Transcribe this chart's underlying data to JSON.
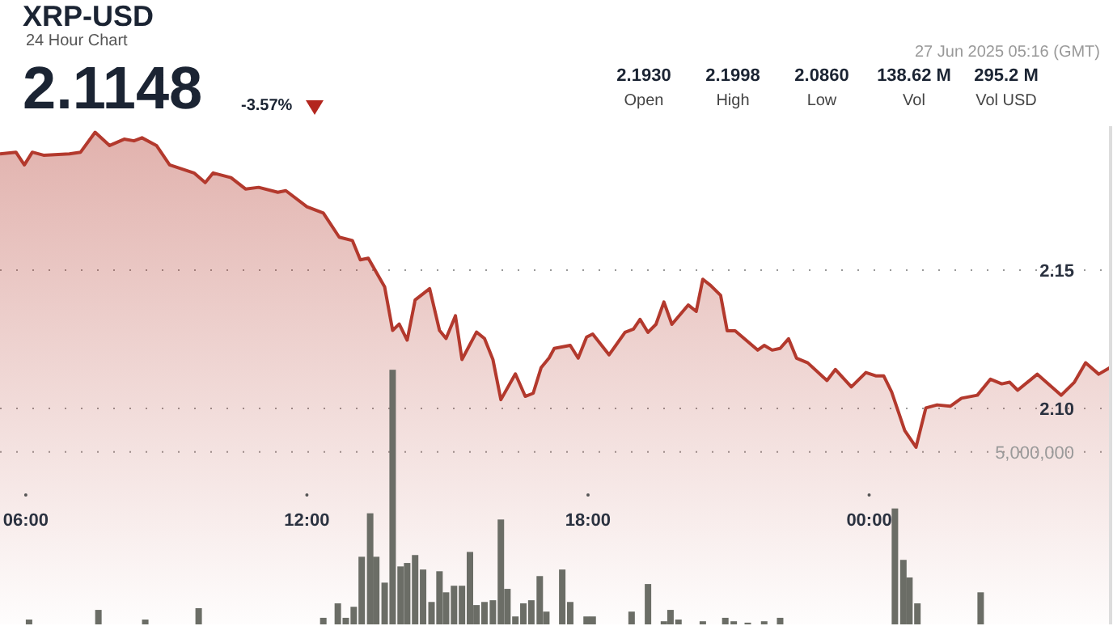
{
  "chart_data": {
    "type": "area",
    "title": "XRP-USD",
    "subtitle": "24 Hour Chart",
    "annotations": [
      "2.1148",
      "-3.57%",
      "27 Jun 2025 05:16 (GMT)",
      "2.1930",
      "Open",
      "2.1998",
      "High",
      "2.0860",
      "Low",
      "138.62 M",
      "Vol",
      "295.2 M",
      "Vol USD"
    ],
    "xlim": [
      5.45,
      29.17
    ],
    "xticks": [
      {
        "value": 6,
        "label": "06:00"
      },
      {
        "value": 12,
        "label": "12:00"
      },
      {
        "value": 18,
        "label": "18:00"
      },
      {
        "value": 24,
        "label": "00:00"
      }
    ],
    "ylim": [
      2.022,
      2.202
    ],
    "yticks": [
      {
        "value": 2.1,
        "label": "2.10"
      },
      2.15
    ],
    "y2lim": [
      0,
      14440000
    ],
    "y2ticks": [
      {
        "value": 5000000,
        "label": "5,000,000"
      }
    ],
    "grid": "y",
    "legend": false,
    "series": [
      {
        "type": "area",
        "color": "#b3392d",
        "x": [
          5.45,
          5.79,
          5.97,
          6.14,
          6.38,
          6.93,
          7.17,
          7.48,
          7.79,
          8.1,
          8.31,
          8.48,
          8.79,
          9.07,
          9.59,
          9.83,
          10.0,
          10.38,
          10.69,
          10.97,
          11.38,
          11.55,
          12.0,
          12.35,
          12.69,
          12.97,
          13.14,
          13.31,
          13.66,
          13.83,
          13.97,
          14.14,
          14.31,
          14.62,
          14.83,
          14.97,
          15.17,
          15.31,
          15.62,
          15.79,
          15.97,
          16.14,
          16.45,
          16.66,
          16.83,
          17.0,
          17.17,
          17.28,
          17.62,
          17.79,
          17.97,
          18.1,
          18.45,
          18.79,
          18.97,
          19.11,
          19.28,
          19.45,
          19.62,
          19.79,
          20.14,
          20.31,
          20.45,
          20.62,
          20.83,
          20.97,
          21.14,
          21.62,
          21.76,
          21.93,
          22.1,
          22.28,
          22.45,
          22.69,
          23.1,
          23.28,
          23.62,
          23.93,
          24.14,
          24.31,
          24.48,
          24.76,
          25.0,
          25.21,
          25.45,
          25.73,
          25.97,
          26.31,
          26.59,
          26.83,
          27.0,
          27.17,
          27.59,
          28.1,
          28.38,
          28.62,
          28.9,
          29.14
        ],
        "values": [
          2.192,
          2.1926,
          2.188,
          2.1926,
          2.1915,
          2.192,
          2.1926,
          2.1998,
          2.195,
          2.1973,
          2.1967,
          2.1978,
          2.195,
          2.188,
          2.1851,
          2.1816,
          2.1851,
          2.1834,
          2.1793,
          2.1799,
          2.1781,
          2.1787,
          2.1729,
          2.1706,
          2.1619,
          2.1607,
          2.1537,
          2.1543,
          2.1439,
          2.1282,
          2.1305,
          2.1247,
          2.1392,
          2.1433,
          2.1282,
          2.1253,
          2.1335,
          2.1177,
          2.1276,
          2.1253,
          2.1177,
          2.1032,
          2.1125,
          2.1044,
          2.1055,
          2.1148,
          2.1183,
          2.1217,
          2.1228,
          2.1182,
          2.1258,
          2.1269,
          2.1194,
          2.1275,
          2.1287,
          2.1322,
          2.1275,
          2.1304,
          2.1385,
          2.1304,
          2.1374,
          2.1351,
          2.1467,
          2.1444,
          2.1409,
          2.1281,
          2.1281,
          2.1211,
          2.1228,
          2.1211,
          2.1217,
          2.1252,
          2.1182,
          2.1165,
          2.1101,
          2.1141,
          2.1078,
          2.113,
          2.1118,
          2.1118,
          2.106,
          2.092,
          2.086,
          2.1002,
          2.1013,
          2.1008,
          2.1037,
          2.1048,
          2.1106,
          2.1089,
          2.1095,
          2.1066,
          2.1124,
          2.1048,
          2.1095,
          2.1165,
          2.1124,
          2.1148
        ]
      },
      {
        "type": "bar",
        "axis": "y2",
        "color": "#6b6d66",
        "x": [
          6.07,
          7.55,
          8.55,
          9.69,
          12.35,
          12.66,
          12.83,
          13.0,
          13.17,
          13.35,
          13.48,
          13.66,
          13.83,
          14.0,
          14.14,
          14.31,
          14.48,
          14.66,
          14.83,
          14.97,
          15.14,
          15.31,
          15.48,
          15.62,
          15.79,
          15.97,
          16.14,
          16.28,
          16.45,
          16.62,
          16.79,
          16.97,
          17.11,
          17.45,
          17.62,
          17.97,
          18.1,
          18.93,
          19.28,
          19.62,
          19.76,
          19.93,
          20.45,
          20.93,
          21.11,
          21.41,
          21.76,
          22.1,
          24.55,
          24.73,
          24.86,
          25.03,
          26.38
        ],
        "values": [
          140000,
          420000,
          140000,
          470000,
          190000,
          610000,
          190000,
          510000,
          1960000,
          3220000,
          1960000,
          1210000,
          7380000,
          1680000,
          1780000,
          2010000,
          1590000,
          650000,
          1540000,
          930000,
          1120000,
          1120000,
          2100000,
          560000,
          650000,
          700000,
          3040000,
          1030000,
          230000,
          610000,
          700000,
          1400000,
          370000,
          1590000,
          650000,
          230000,
          230000,
          370000,
          1170000,
          90000,
          420000,
          140000,
          90000,
          190000,
          90000,
          50000,
          90000,
          190000,
          3360000,
          1870000,
          1360000,
          610000,
          930000
        ]
      }
    ]
  }
}
